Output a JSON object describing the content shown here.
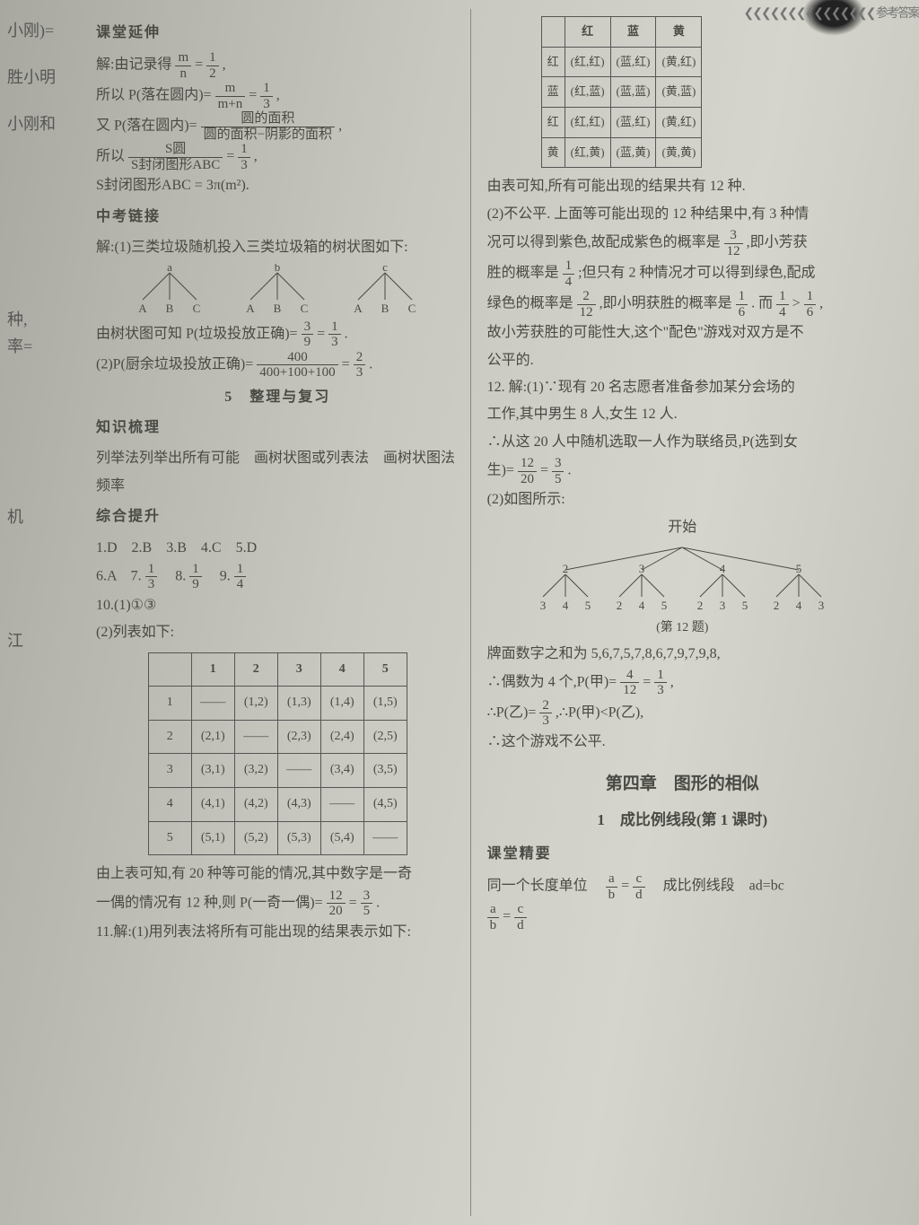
{
  "edge": {
    "t1": "小刚)=",
    "t2": "胜小明",
    "t3": "小刚和",
    "t4": "种,",
    "t5": "率=",
    "t6": "机",
    "t7": "江"
  },
  "header": {
    "left": "课堂延伸",
    "right_decor": "❮❮❮❮❮❮❮❮❮❮❮❮❮❮❮ 参考答案"
  },
  "left": {
    "l1a": "解:由记录得",
    "l1_frac": {
      "n": "m",
      "d": "n"
    },
    "l1b": "=",
    "l1_frac2": {
      "n": "1",
      "d": "2"
    },
    "l1c": ",",
    "l2a": "所以 P(落在圆内)=",
    "l2_frac": {
      "n": "m",
      "d": "m+n"
    },
    "l2b": "=",
    "l2_frac2": {
      "n": "1",
      "d": "3"
    },
    "l2c": ",",
    "l3a": "又 P(落在圆内)=",
    "l3_frac": {
      "n": "圆的面积",
      "d": "圆的面积−阴影的面积"
    },
    "l3b": ",",
    "l4a": "所以",
    "l4_frac": {
      "n": "S圆",
      "d": "S封闭图形ABC"
    },
    "l4b": "=",
    "l4_frac2": {
      "n": "1",
      "d": "3"
    },
    "l4c": ",",
    "l5": "S封闭图形ABC = 3π(m²).",
    "zk": "中考链接",
    "l6": "解:(1)三类垃圾随机投入三类垃圾箱的树状图如下:",
    "l7a": "由树状图可知 P(垃圾投放正确)=",
    "l7_frac": {
      "n": "3",
      "d": "9"
    },
    "l7b": "=",
    "l7_frac2": {
      "n": "1",
      "d": "3"
    },
    "l7c": ".",
    "l8a": "(2)P(厨余垃圾投放正确)=",
    "l8_frac": {
      "n": "400",
      "d": "400+100+100"
    },
    "l8b": "=",
    "l8_frac2": {
      "n": "2",
      "d": "3"
    },
    "l8c": ".",
    "unit5": "5　整理与复习",
    "zs": "知识梳理",
    "l9": "列举法列举出所有可能　画树状图或列表法　画树状图法　频率",
    "zh": "综合提升",
    "ans1": "1.D　2.B　3.B　4.C　5.D",
    "ans2a": "6.A　7.",
    "ans2_f1": {
      "n": "1",
      "d": "3"
    },
    "ans2b": "　8.",
    "ans2_f2": {
      "n": "1",
      "d": "9"
    },
    "ans2c": "　9.",
    "ans2_f3": {
      "n": "1",
      "d": "4"
    },
    "l10": "10.(1)①③",
    "l11": "(2)列表如下:",
    "table10": {
      "headers": [
        "",
        "1",
        "2",
        "3",
        "4",
        "5"
      ],
      "rows": [
        [
          "1",
          "——",
          "(1,2)",
          "(1,3)",
          "(1,4)",
          "(1,5)"
        ],
        [
          "2",
          "(2,1)",
          "——",
          "(2,3)",
          "(2,4)",
          "(2,5)"
        ],
        [
          "3",
          "(3,1)",
          "(3,2)",
          "——",
          "(3,4)",
          "(3,5)"
        ],
        [
          "4",
          "(4,1)",
          "(4,2)",
          "(4,3)",
          "——",
          "(4,5)"
        ],
        [
          "5",
          "(5,1)",
          "(5,2)",
          "(5,3)",
          "(5,4)",
          "——"
        ]
      ]
    },
    "l12": "由上表可知,有 20 种等可能的情况,其中数字是一奇",
    "l13a": "一偶的情况有 12 种,则 P(一奇一偶)=",
    "l13_f1": {
      "n": "12",
      "d": "20"
    },
    "l13b": "=",
    "l13_f2": {
      "n": "3",
      "d": "5"
    },
    "l13c": ".",
    "l14": "11.解:(1)用列表法将所有可能出现的结果表示如下:"
  },
  "right": {
    "color_table": {
      "headers": [
        "",
        "红",
        "蓝",
        "黄"
      ],
      "rows": [
        [
          "红",
          "(红,红)",
          "(蓝,红)",
          "(黄,红)"
        ],
        [
          "蓝",
          "(红,蓝)",
          "(蓝,蓝)",
          "(黄,蓝)"
        ],
        [
          "红",
          "(红,红)",
          "(蓝,红)",
          "(黄,红)"
        ],
        [
          "黄",
          "(红,黄)",
          "(蓝,黄)",
          "(黄,黄)"
        ]
      ]
    },
    "r1": "由表可知,所有可能出现的结果共有 12 种.",
    "r2": "(2)不公平. 上面等可能出现的 12 种结果中,有 3 种情",
    "r3a": "况可以得到紫色,故配成紫色的概率是",
    "r3_f": {
      "n": "3",
      "d": "12"
    },
    "r3b": ",即小芳获",
    "r4a": "胜的概率是",
    "r4_f": {
      "n": "1",
      "d": "4"
    },
    "r4b": ";但只有 2 种情况才可以得到绿色,配成",
    "r5a": "绿色的概率是",
    "r5_f1": {
      "n": "2",
      "d": "12"
    },
    "r5b": ",即小明获胜的概率是",
    "r5_f2": {
      "n": "1",
      "d": "6"
    },
    "r5c": ". 而",
    "r5_f3": {
      "n": "1",
      "d": "4"
    },
    "r5d": ">",
    "r5_f4": {
      "n": "1",
      "d": "6"
    },
    "r5e": ",",
    "r6": "故小芳获胜的可能性大,这个\"配色\"游戏对双方是不",
    "r7": "公平的.",
    "r8": "12. 解:(1)∵现有 20 名志愿者准备参加某分会场的",
    "r9": "工作,其中男生 8 人,女生 12 人.",
    "r10": "∴从这 20 人中随机选取一人作为联络员,P(选到女",
    "r11a": "生)=",
    "r11_f1": {
      "n": "12",
      "d": "20"
    },
    "r11b": "=",
    "r11_f2": {
      "n": "3",
      "d": "5"
    },
    "r11c": ".",
    "r12": "(2)如图所示:",
    "tree_start": "开始",
    "tree_caption": "(第 12 题)",
    "r13": "牌面数字之和为 5,6,7,5,7,8,6,7,9,7,9,8,",
    "r14a": "∴偶数为 4 个,P(甲)=",
    "r14_f1": {
      "n": "4",
      "d": "12"
    },
    "r14b": "=",
    "r14_f2": {
      "n": "1",
      "d": "3"
    },
    "r14c": ",",
    "r15a": "∴P(乙)=",
    "r15_f": {
      "n": "2",
      "d": "3"
    },
    "r15b": ",∴P(甲)<P(乙),",
    "r16": "∴这个游戏不公平.",
    "chapter": "第四章　图形的相似",
    "sub": "1　成比例线段(第 1 课时)",
    "ktjy": "课堂精要",
    "r17a": "同一个长度单位　",
    "r17_f1": {
      "n": "a",
      "d": "b"
    },
    "r17b": "=",
    "r17_f2": {
      "n": "c",
      "d": "d"
    },
    "r17c": "　成比例线段　ad=bc",
    "r18_f1": {
      "n": "a",
      "d": "b"
    },
    "r18a": "=",
    "r18_f2": {
      "n": "c",
      "d": "d"
    }
  }
}
